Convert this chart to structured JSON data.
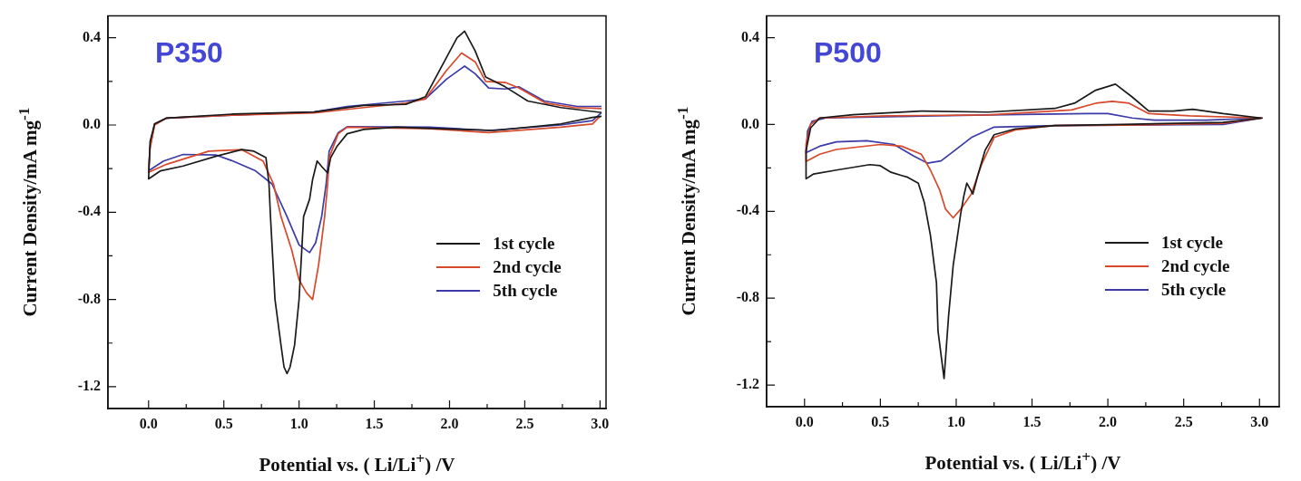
{
  "chart_data": [
    {
      "type": "line",
      "xlabel": "Potential vs. ( Li/Li$^{+}$) /V",
      "ylabel": "Current Density/mA mg$^{-1}$",
      "annotations": [
        "P350"
      ],
      "legend": "right",
      "marker": "none",
      "grid": false,
      "xlim": [
        -0.27,
        3.04
      ],
      "ylim": [
        -1.3,
        0.5
      ],
      "xticks": [
        {
          "value": 0,
          "label": "0.0"
        },
        {
          "value": 0.25,
          "label": null
        },
        {
          "value": 0.5,
          "label": "0.5"
        },
        {
          "value": 0.75,
          "label": null
        },
        {
          "value": 1,
          "label": "1.0"
        },
        {
          "value": 1.25,
          "label": null
        },
        {
          "value": 1.5,
          "label": "1.5"
        },
        {
          "value": 1.75,
          "label": null
        },
        {
          "value": 2,
          "label": "2.0"
        },
        {
          "value": 2.25,
          "label": null
        },
        {
          "value": 2.5,
          "label": "2.5"
        },
        {
          "value": 2.75,
          "label": null
        },
        {
          "value": 3,
          "label": "3.0"
        }
      ],
      "yticks": [
        -1.2,
        {
          "value": -1.0,
          "label": null
        },
        -0.8,
        {
          "value": -0.6,
          "label": null
        },
        -0.4,
        {
          "value": -0.2,
          "label": null
        },
        {
          "value": 0,
          "label": "0.0"
        },
        {
          "value": 0.2,
          "label": null
        },
        0.4
      ],
      "series": [
        {
          "name": "1st cycle",
          "color": "#1a1a1a",
          "x": [
            3.01,
            2.95,
            2.74,
            2.3,
            2.08,
            1.65,
            1.43,
            1.32,
            1.25,
            1.21,
            1.19,
            1.15,
            1.12,
            1.09,
            1.07,
            1.03,
            1.0,
            0.97,
            0.94,
            0.92,
            0.9,
            0.88,
            0.84,
            0.81,
            0.8,
            0.78,
            0.7,
            0.62,
            0.45,
            0.23,
            0.08,
            0.0,
            0.01,
            0.04,
            0.12,
            0.56,
            1.1,
            1.43,
            1.71,
            1.84,
            1.98,
            2.05,
            2.1,
            2.17,
            2.24,
            2.37,
            2.52,
            2.74,
            3.01
          ],
          "values": [
            0.04,
            0.035,
            0.005,
            -0.025,
            -0.02,
            -0.01,
            -0.02,
            -0.04,
            -0.1,
            -0.15,
            -0.22,
            -0.19,
            -0.165,
            -0.25,
            -0.34,
            -0.42,
            -0.8,
            -1.01,
            -1.11,
            -1.14,
            -1.11,
            -1.01,
            -0.8,
            -0.42,
            -0.27,
            -0.15,
            -0.12,
            -0.113,
            -0.143,
            -0.188,
            -0.21,
            -0.247,
            -0.076,
            0.005,
            0.032,
            0.05,
            0.06,
            0.09,
            0.095,
            0.13,
            0.31,
            0.4,
            0.43,
            0.34,
            0.22,
            0.175,
            0.11,
            0.08,
            0.057
          ]
        },
        {
          "name": "2nd cycle",
          "color": "#d8482a",
          "x": [
            3.0,
            2.95,
            2.74,
            2.26,
            1.87,
            1.32,
            1.26,
            1.2,
            1.19,
            1.17,
            1.13,
            1.09,
            1.05,
            1.0,
            0.95,
            0.88,
            0.83,
            0.76,
            0.62,
            0.4,
            0.12,
            0.0,
            0.01,
            0.04,
            0.12,
            0.56,
            1.1,
            1.43,
            1.71,
            1.84,
            1.98,
            2.08,
            2.17,
            2.24,
            2.37,
            2.46,
            2.64,
            2.83,
            3.01
          ],
          "values": [
            0.04,
            0.005,
            -0.01,
            -0.035,
            -0.017,
            -0.01,
            -0.04,
            -0.15,
            -0.27,
            -0.42,
            -0.64,
            -0.8,
            -0.77,
            -0.71,
            -0.57,
            -0.42,
            -0.27,
            -0.165,
            -0.113,
            -0.12,
            -0.18,
            -0.217,
            -0.106,
            0.0,
            0.032,
            0.045,
            0.055,
            0.08,
            0.1,
            0.12,
            0.25,
            0.33,
            0.29,
            0.2,
            0.195,
            0.17,
            0.1,
            0.08,
            0.075
          ]
        },
        {
          "name": "5th cycle",
          "color": "#3b3aa8",
          "x": [
            3.01,
            2.95,
            2.74,
            2.26,
            1.87,
            1.32,
            1.26,
            1.2,
            1.18,
            1.15,
            1.11,
            1.07,
            1.0,
            0.92,
            0.82,
            0.71,
            0.56,
            0.45,
            0.23,
            0.1,
            0.0,
            0.01,
            0.04,
            0.12,
            0.56,
            1.1,
            1.32,
            1.71,
            1.84,
            1.98,
            2.1,
            2.17,
            2.26,
            2.37,
            2.46,
            2.63,
            2.85,
            3.01
          ],
          "values": [
            0.057,
            0.02,
            0.0,
            -0.025,
            -0.01,
            -0.008,
            -0.035,
            -0.12,
            -0.27,
            -0.42,
            -0.54,
            -0.585,
            -0.55,
            -0.42,
            -0.27,
            -0.21,
            -0.165,
            -0.138,
            -0.135,
            -0.165,
            -0.21,
            -0.1,
            0.005,
            0.032,
            0.045,
            0.06,
            0.085,
            0.11,
            0.12,
            0.21,
            0.27,
            0.235,
            0.17,
            0.165,
            0.175,
            0.11,
            0.085,
            0.085
          ]
        }
      ]
    },
    {
      "type": "line",
      "xlabel": "Potential vs. ( Li/Li$^{+}$) /V",
      "ylabel": "Current Density/mA mg$^{-1}$",
      "annotations": [
        "P500"
      ],
      "legend": "right",
      "marker": "none",
      "grid": false,
      "xlim": [
        -0.25,
        3.13
      ],
      "ylim": [
        -1.3,
        0.5
      ],
      "xticks": [
        {
          "value": 0,
          "label": "0.0"
        },
        {
          "value": 0.25,
          "label": null
        },
        {
          "value": 0.5,
          "label": "0.5"
        },
        {
          "value": 0.75,
          "label": null
        },
        {
          "value": 1,
          "label": "1.0"
        },
        {
          "value": 1.25,
          "label": null
        },
        {
          "value": 1.5,
          "label": "1.5"
        },
        {
          "value": 1.75,
          "label": null
        },
        {
          "value": 2,
          "label": "2.0"
        },
        {
          "value": 2.25,
          "label": null
        },
        {
          "value": 2.5,
          "label": "2.5"
        },
        {
          "value": 2.75,
          "label": null
        },
        {
          "value": 3,
          "label": "3.0"
        }
      ],
      "yticks": [
        -1.2,
        {
          "value": -1.0,
          "label": null
        },
        -0.8,
        {
          "value": -0.6,
          "label": null
        },
        -0.4,
        {
          "value": -0.2,
          "label": null
        },
        {
          "value": 0,
          "label": "0.0"
        },
        {
          "value": 0.2,
          "label": null
        },
        0.4
      ],
      "series": [
        {
          "name": "1st cycle",
          "color": "#1a1a1a",
          "x": [
            3.02,
            2.76,
            2.09,
            1.65,
            1.39,
            1.25,
            1.19,
            1.14,
            1.11,
            1.07,
            1.05,
            1.03,
            0.98,
            0.95,
            0.92,
            0.88,
            0.87,
            0.83,
            0.79,
            0.75,
            0.68,
            0.64,
            0.57,
            0.5,
            0.43,
            0.21,
            0.06,
            0.01,
            0.01,
            0.04,
            0.1,
            0.32,
            0.77,
            1.21,
            1.65,
            1.78,
            1.92,
            2.05,
            2.16,
            2.27,
            2.43,
            2.56,
            2.76,
            3.01
          ],
          "values": [
            0.03,
            0.01,
            0.0,
            -0.005,
            -0.02,
            -0.047,
            -0.12,
            -0.24,
            -0.32,
            -0.27,
            -0.33,
            -0.41,
            -0.65,
            -0.88,
            -1.17,
            -0.95,
            -0.73,
            -0.51,
            -0.36,
            -0.27,
            -0.243,
            -0.235,
            -0.22,
            -0.19,
            -0.185,
            -0.21,
            -0.228,
            -0.25,
            -0.12,
            -0.016,
            0.03,
            0.045,
            0.062,
            0.057,
            0.074,
            0.098,
            0.158,
            0.186,
            0.127,
            0.062,
            0.062,
            0.07,
            0.05,
            0.03
          ]
        },
        {
          "name": "2nd cycle",
          "color": "#d8482a",
          "x": [
            3.02,
            2.76,
            2.09,
            1.65,
            1.39,
            1.25,
            1.17,
            1.1,
            1.03,
            0.98,
            0.93,
            0.89,
            0.83,
            0.77,
            0.64,
            0.5,
            0.21,
            0.1,
            0.01,
            0.01,
            0.04,
            0.1,
            0.54,
            1.21,
            1.76,
            1.92,
            2.03,
            2.14,
            2.27,
            2.54,
            3.01
          ],
          "values": [
            0.03,
            0.005,
            -0.003,
            -0.005,
            -0.025,
            -0.06,
            -0.18,
            -0.32,
            -0.39,
            -0.43,
            -0.39,
            -0.3,
            -0.21,
            -0.137,
            -0.1,
            -0.092,
            -0.115,
            -0.137,
            -0.17,
            -0.09,
            0.0,
            0.03,
            0.04,
            0.044,
            0.067,
            0.098,
            0.107,
            0.098,
            0.05,
            0.04,
            0.03
          ]
        },
        {
          "name": "5th cycle",
          "color": "#3b3aa8",
          "x": [
            3.02,
            2.76,
            1.65,
            1.25,
            1.1,
            0.99,
            0.9,
            0.81,
            0.72,
            0.59,
            0.41,
            0.21,
            0.1,
            0.01,
            0.02,
            0.05,
            0.14,
            1.21,
            1.87,
            2.0,
            2.16,
            2.31,
            2.65,
            3.01
          ],
          "values": [
            0.03,
            0.0,
            -0.005,
            -0.012,
            -0.06,
            -0.12,
            -0.168,
            -0.178,
            -0.145,
            -0.092,
            -0.075,
            -0.08,
            -0.1,
            -0.13,
            -0.03,
            0.015,
            0.03,
            0.044,
            0.05,
            0.05,
            0.03,
            0.02,
            0.02,
            0.03
          ]
        }
      ]
    }
  ]
}
